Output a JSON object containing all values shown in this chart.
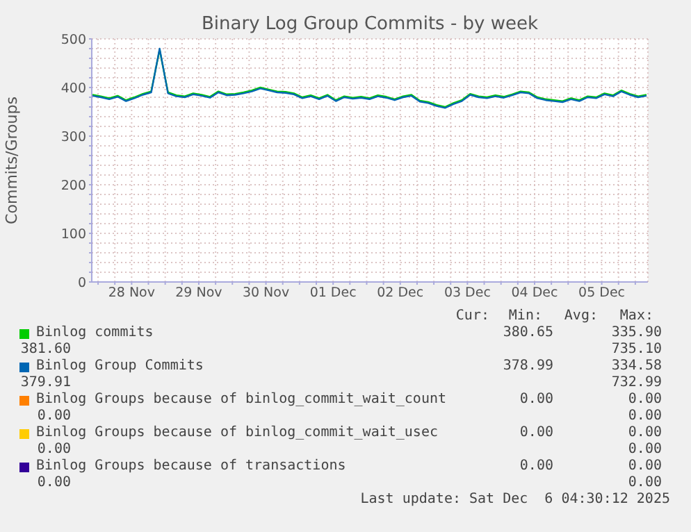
{
  "chart_data": {
    "type": "line",
    "title": "Binary Log Group Commits - by week",
    "ylabel": "Commits/Groups",
    "x": [
      "2025-11-27T22:00",
      "2025-11-28T01:00",
      "2025-11-28T04:00",
      "2025-11-28T07:00",
      "2025-11-28T10:00",
      "2025-11-28T13:00",
      "2025-11-28T16:00",
      "2025-11-28T19:00",
      "2025-11-28T22:00",
      "2025-11-29T01:00",
      "2025-11-29T04:00",
      "2025-11-29T07:00",
      "2025-11-29T10:00",
      "2025-11-29T13:00",
      "2025-11-29T16:00",
      "2025-11-29T19:00",
      "2025-11-29T22:00",
      "2025-11-30T01:00",
      "2025-11-30T04:00",
      "2025-11-30T07:00",
      "2025-11-30T10:00",
      "2025-11-30T13:00",
      "2025-11-30T16:00",
      "2025-11-30T19:00",
      "2025-11-30T22:00",
      "2025-12-01T01:00",
      "2025-12-01T04:00",
      "2025-12-01T07:00",
      "2025-12-01T10:00",
      "2025-12-01T13:00",
      "2025-12-01T16:00",
      "2025-12-01T19:00",
      "2025-12-01T22:00",
      "2025-12-02T01:00",
      "2025-12-02T04:00",
      "2025-12-02T07:00",
      "2025-12-02T10:00",
      "2025-12-02T13:00",
      "2025-12-02T16:00",
      "2025-12-02T19:00",
      "2025-12-02T22:00",
      "2025-12-03T01:00",
      "2025-12-03T04:00",
      "2025-12-03T07:00",
      "2025-12-03T10:00",
      "2025-12-03T13:00",
      "2025-12-03T16:00",
      "2025-12-03T19:00",
      "2025-12-03T22:00",
      "2025-12-04T01:00",
      "2025-12-04T04:00",
      "2025-12-04T07:00",
      "2025-12-04T10:00",
      "2025-12-04T13:00",
      "2025-12-04T16:00",
      "2025-12-04T19:00",
      "2025-12-04T22:00",
      "2025-12-05T01:00",
      "2025-12-05T04:00",
      "2025-12-05T07:00",
      "2025-12-05T10:00",
      "2025-12-05T13:00",
      "2025-12-05T16:00",
      "2025-12-05T19:00",
      "2025-12-05T22:00",
      "2025-12-06T01:00",
      "2025-12-06T04:00"
    ],
    "series": [
      {
        "name": "Binlog commits",
        "color": "#00cc00",
        "values": [
          385,
          382,
          378,
          383,
          374,
          380,
          387,
          392,
          478,
          390,
          384,
          382,
          388,
          385,
          381,
          392,
          386,
          387,
          390,
          394,
          400,
          396,
          392,
          391,
          388,
          380,
          384,
          378,
          385,
          374,
          382,
          379,
          381,
          378,
          384,
          381,
          376,
          382,
          385,
          373,
          370,
          364,
          360,
          368,
          374,
          387,
          382,
          380,
          384,
          381,
          386,
          392,
          390,
          380,
          376,
          374,
          372,
          378,
          374,
          382,
          380,
          388,
          384,
          394,
          387,
          382,
          385
        ]
      },
      {
        "name": "Binlog Group Commits",
        "color": "#0066b3",
        "values": [
          383,
          380,
          376,
          381,
          372,
          378,
          385,
          390,
          480,
          388,
          382,
          380,
          386,
          383,
          379,
          390,
          384,
          385,
          388,
          392,
          398,
          394,
          390,
          389,
          386,
          378,
          382,
          376,
          383,
          372,
          380,
          377,
          379,
          376,
          382,
          379,
          374,
          380,
          383,
          371,
          368,
          362,
          358,
          366,
          372,
          385,
          380,
          378,
          382,
          379,
          384,
          390,
          388,
          378,
          374,
          372,
          370,
          376,
          372,
          380,
          378,
          386,
          382,
          392,
          385,
          380,
          383
        ]
      },
      {
        "name": "Binlog Groups because of binlog_commit_wait_count",
        "color": "#ff8000",
        "values": [
          null,
          null,
          null,
          null,
          null,
          null,
          null,
          null,
          null,
          null,
          null,
          null,
          null,
          null,
          null,
          null,
          null,
          null,
          null,
          null,
          null,
          null,
          null,
          null,
          null,
          null,
          null,
          null,
          null,
          null,
          null,
          null,
          null,
          null,
          null,
          null,
          null,
          null,
          null,
          null,
          null,
          null,
          null,
          null,
          null,
          null,
          null,
          null,
          null,
          null,
          null,
          null,
          null,
          null,
          null,
          null,
          null,
          null,
          null,
          null,
          null,
          null,
          null,
          null,
          null,
          null,
          null
        ]
      },
      {
        "name": "Binlog Groups because of binlog_commit_wait_usec",
        "color": "#ffcc00",
        "values": [
          null,
          null,
          null,
          null,
          null,
          null,
          null,
          null,
          null,
          null,
          null,
          null,
          null,
          null,
          null,
          null,
          null,
          null,
          null,
          null,
          null,
          null,
          null,
          null,
          null,
          null,
          null,
          null,
          null,
          null,
          null,
          null,
          null,
          null,
          null,
          null,
          null,
          null,
          null,
          null,
          null,
          null,
          null,
          null,
          null,
          null,
          null,
          null,
          null,
          null,
          null,
          null,
          null,
          null,
          null,
          null,
          null,
          null,
          null,
          null,
          null,
          null,
          null,
          null,
          null,
          null,
          null
        ]
      },
      {
        "name": "Binlog Groups because of transactions",
        "color": "#330099",
        "values": [
          null,
          null,
          null,
          null,
          null,
          null,
          null,
          null,
          null,
          null,
          null,
          null,
          null,
          null,
          null,
          null,
          null,
          null,
          null,
          null,
          null,
          null,
          null,
          null,
          null,
          null,
          null,
          null,
          null,
          null,
          null,
          null,
          null,
          null,
          null,
          null,
          null,
          null,
          null,
          null,
          null,
          null,
          null,
          null,
          null,
          null,
          null,
          null,
          null,
          null,
          null,
          null,
          null,
          null,
          null,
          null,
          null,
          null,
          null,
          null,
          null,
          null,
          null,
          null,
          null,
          null,
          null
        ]
      }
    ],
    "xlim": [
      "2025-11-27T21:45",
      "2025-12-06T04:30"
    ],
    "xticks": [
      {
        "value": "2025-11-28T00:00",
        "label": null
      },
      {
        "value": "2025-11-28T06:00",
        "label": null
      },
      {
        "value": "2025-11-28T12:00",
        "label": "28 Nov"
      },
      {
        "value": "2025-11-28T18:00",
        "label": null
      },
      {
        "value": "2025-11-29T00:00",
        "label": null
      },
      {
        "value": "2025-11-29T06:00",
        "label": null
      },
      {
        "value": "2025-11-29T12:00",
        "label": "29 Nov"
      },
      {
        "value": "2025-11-29T18:00",
        "label": null
      },
      {
        "value": "2025-11-30T00:00",
        "label": null
      },
      {
        "value": "2025-11-30T06:00",
        "label": null
      },
      {
        "value": "2025-11-30T12:00",
        "label": "30 Nov"
      },
      {
        "value": "2025-11-30T18:00",
        "label": null
      },
      {
        "value": "2025-12-01T00:00",
        "label": null
      },
      {
        "value": "2025-12-01T06:00",
        "label": null
      },
      {
        "value": "2025-12-01T12:00",
        "label": "01 Dec"
      },
      {
        "value": "2025-12-01T18:00",
        "label": null
      },
      {
        "value": "2025-12-02T00:00",
        "label": null
      },
      {
        "value": "2025-12-02T06:00",
        "label": null
      },
      {
        "value": "2025-12-02T12:00",
        "label": "02 Dec"
      },
      {
        "value": "2025-12-02T18:00",
        "label": null
      },
      {
        "value": "2025-12-03T00:00",
        "label": null
      },
      {
        "value": "2025-12-03T06:00",
        "label": null
      },
      {
        "value": "2025-12-03T12:00",
        "label": "03 Dec"
      },
      {
        "value": "2025-12-03T18:00",
        "label": null
      },
      {
        "value": "2025-12-04T00:00",
        "label": null
      },
      {
        "value": "2025-12-04T06:00",
        "label": null
      },
      {
        "value": "2025-12-04T12:00",
        "label": "04 Dec"
      },
      {
        "value": "2025-12-04T18:00",
        "label": null
      },
      {
        "value": "2025-12-05T00:00",
        "label": null
      },
      {
        "value": "2025-12-05T06:00",
        "label": null
      },
      {
        "value": "2025-12-05T12:00",
        "label": "05 Dec"
      },
      {
        "value": "2025-12-05T18:00",
        "label": null
      },
      {
        "value": "2025-12-06T00:00",
        "label": null
      }
    ],
    "ylim": [
      0,
      500
    ],
    "yticks": [
      0,
      {
        "value": 20,
        "label": null
      },
      {
        "value": 40,
        "label": null
      },
      {
        "value": 60,
        "label": null
      },
      {
        "value": 80,
        "label": null
      },
      100,
      {
        "value": 120,
        "label": null
      },
      {
        "value": 140,
        "label": null
      },
      {
        "value": 160,
        "label": null
      },
      {
        "value": 180,
        "label": null
      },
      200,
      {
        "value": 220,
        "label": null
      },
      {
        "value": 240,
        "label": null
      },
      {
        "value": 260,
        "label": null
      },
      {
        "value": 280,
        "label": null
      },
      300,
      {
        "value": 320,
        "label": null
      },
      {
        "value": 340,
        "label": null
      },
      {
        "value": 360,
        "label": null
      },
      {
        "value": 380,
        "label": null
      },
      400,
      {
        "value": 420,
        "label": null
      },
      {
        "value": 440,
        "label": null
      },
      {
        "value": 460,
        "label": null
      },
      {
        "value": 480,
        "label": null
      },
      500
    ],
    "grid": true,
    "legend": "bottom",
    "annotations": [
      "Cur:",
      "Min:",
      "Avg:",
      "Max:",
      "380.65",
      "335.90",
      "381.60",
      "735.10",
      "378.99",
      "334.58",
      "379.91",
      "732.99",
      "0.00",
      "0.00",
      "0.00",
      "0.00",
      "0.00",
      "0.00",
      "0.00",
      "0.00",
      "0.00",
      "0.00",
      "0.00",
      "0.00",
      "Last update: Sat Dec  6 04:30:12 2025"
    ]
  }
}
